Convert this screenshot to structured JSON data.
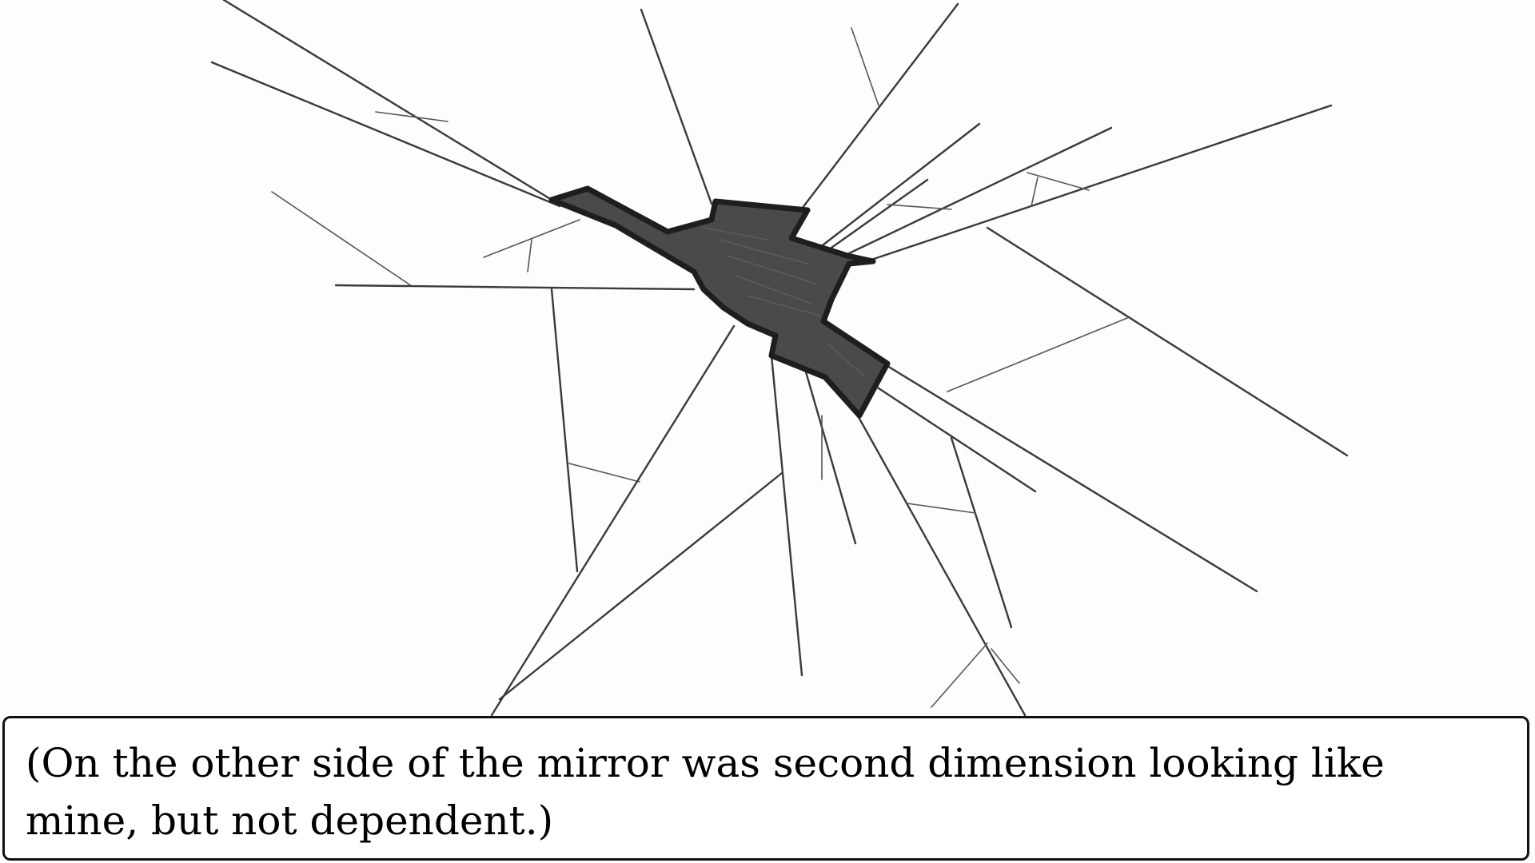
{
  "scene": {
    "icon": "shattered-mirror-icon",
    "colors": {
      "background": "#fdfdfe",
      "crack": "#3a3a3a",
      "hole": "#4a4a4a",
      "hole_outline": "#1e1e1e"
    }
  },
  "dialogue": {
    "text": "(On the other side of the mirror was second dimension looking like mine, but not dependent.)",
    "border_color": "#111111",
    "text_color": "#000000"
  }
}
